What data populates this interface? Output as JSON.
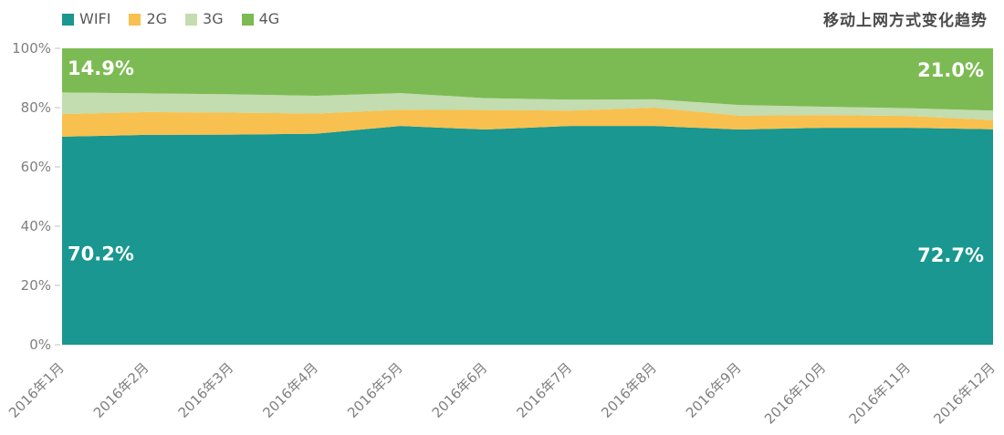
{
  "title": "移动上网方式变化趋势",
  "colors": {
    "wifi": "#199790",
    "g2": "#F8C04E",
    "g3": "#C3DCB0",
    "g4": "#7CBB53",
    "axis_text": "#7f7f7f",
    "tick_mark": "#d6d6d6",
    "title_text": "#4a4a4a",
    "legend_text": "#595959",
    "annotation_text": "#ffffff"
  },
  "chart_data": {
    "type": "area",
    "stacked": true,
    "title": "移动上网方式变化趋势",
    "legend_position": "top-left",
    "grid": false,
    "ylim": [
      0,
      100
    ],
    "categories": [
      "2016年1月",
      "2016年2月",
      "2016年3月",
      "2016年4月",
      "2016年5月",
      "2016年6月",
      "2016年7月",
      "2016年8月",
      "2016年9月",
      "2016年10月",
      "2016年11月",
      "2016年12月"
    ],
    "series": [
      {
        "name": "WIFI",
        "color": "#199790",
        "values": [
          70.2,
          70.8,
          70.9,
          71.2,
          73.8,
          72.6,
          73.8,
          73.8,
          72.6,
          73.2,
          73.2,
          72.7
        ]
      },
      {
        "name": "2G",
        "color": "#F8C04E",
        "values": [
          7.6,
          7.7,
          7.4,
          6.8,
          5.5,
          6.6,
          5.2,
          6.2,
          4.7,
          4.3,
          4.0,
          3.1
        ]
      },
      {
        "name": "3G",
        "color": "#C3DCB0",
        "values": [
          7.3,
          6.3,
          6.2,
          6.0,
          5.6,
          4.0,
          3.7,
          2.8,
          3.6,
          2.8,
          2.6,
          3.2
        ]
      },
      {
        "name": "4G",
        "color": "#7CBB53",
        "values": [
          14.9,
          15.2,
          15.5,
          16.0,
          15.1,
          16.8,
          17.3,
          17.2,
          19.1,
          19.7,
          20.2,
          21.0
        ]
      }
    ],
    "y_ticks": [
      {
        "value": 0,
        "label": "0%"
      },
      {
        "value": 20,
        "label": "20%"
      },
      {
        "value": 40,
        "label": "40%"
      },
      {
        "value": 60,
        "label": "60%"
      },
      {
        "value": 80,
        "label": "80%"
      },
      {
        "value": 100,
        "label": "100%"
      }
    ],
    "annotations": [
      {
        "text": "14.9%",
        "series": "4G",
        "align": "left",
        "y_pct": 93.5
      },
      {
        "text": "21.0%",
        "series": "4G",
        "align": "right",
        "y_pct": 93.0
      },
      {
        "text": "70.2%",
        "series": "WIFI",
        "align": "left",
        "y_pct": 31.0
      },
      {
        "text": "72.7%",
        "series": "WIFI",
        "align": "right",
        "y_pct": 30.5
      }
    ]
  }
}
